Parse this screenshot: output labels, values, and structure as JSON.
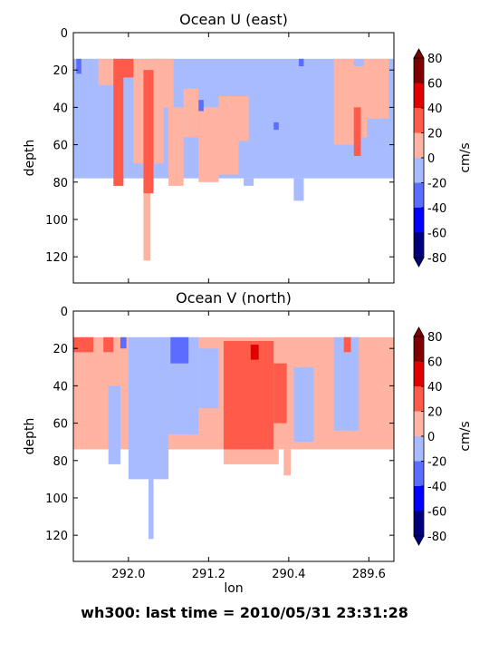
{
  "colors": {
    "levels": [
      -80,
      -60,
      -40,
      -20,
      0,
      20,
      40,
      60,
      80
    ],
    "bins": [
      "#00007f",
      "#0000ff",
      "#5a6dff",
      "#a9bbff",
      "#ffb3a0",
      "#ff5a4a",
      "#e00000",
      "#800000"
    ]
  },
  "suptitle": "wh300: last time = 2010/05/31 23:31:28",
  "chart_data": [
    {
      "type": "heatmap",
      "title": "Ocean U (east)",
      "xlabel": "",
      "ylabel": "depth",
      "x_axis_reversed": true,
      "y_axis_reversed": true,
      "xlim": [
        292.55,
        289.35
      ],
      "ylim": [
        134,
        0
      ],
      "xticks": [
        292.0,
        291.2,
        290.4,
        289.6
      ],
      "xtick_labels_visible": false,
      "yticks": [
        0,
        20,
        40,
        60,
        80,
        100,
        120
      ],
      "colorbar": {
        "label": "cm/s",
        "ticks": [
          80,
          60,
          40,
          20,
          0,
          -20,
          -40,
          -60,
          -80
        ]
      },
      "regions": [
        {
          "value": -10,
          "lon_start": 292.55,
          "lon_end": 289.35,
          "depth_top": 14,
          "depth_bottom": 78
        },
        {
          "value": -10,
          "lon_start": 290.85,
          "lon_end": 290.75,
          "depth_top": 78,
          "depth_bottom": 82
        },
        {
          "value": -10,
          "lon_start": 290.35,
          "lon_end": 290.25,
          "depth_top": 78,
          "depth_bottom": 90
        },
        {
          "value": 10,
          "lon_start": 292.3,
          "lon_end": 292.1,
          "depth_top": 14,
          "depth_bottom": 28
        },
        {
          "value": 10,
          "lon_start": 291.95,
          "lon_end": 291.65,
          "depth_top": 14,
          "depth_bottom": 70
        },
        {
          "value": 10,
          "lon_start": 291.85,
          "lon_end": 291.78,
          "depth_top": 70,
          "depth_bottom": 122
        },
        {
          "value": 10,
          "lon_start": 291.75,
          "lon_end": 291.55,
          "depth_top": 14,
          "depth_bottom": 40
        },
        {
          "value": 10,
          "lon_start": 291.6,
          "lon_end": 291.45,
          "depth_top": 40,
          "depth_bottom": 82
        },
        {
          "value": 10,
          "lon_start": 291.45,
          "lon_end": 291.3,
          "depth_top": 30,
          "depth_bottom": 56
        },
        {
          "value": 10,
          "lon_start": 291.3,
          "lon_end": 291.1,
          "depth_top": 40,
          "depth_bottom": 80
        },
        {
          "value": 10,
          "lon_start": 291.1,
          "lon_end": 290.9,
          "depth_top": 34,
          "depth_bottom": 76
        },
        {
          "value": 10,
          "lon_start": 290.95,
          "lon_end": 290.8,
          "depth_top": 34,
          "depth_bottom": 58
        },
        {
          "value": 10,
          "lon_start": 289.95,
          "lon_end": 289.75,
          "depth_top": 14,
          "depth_bottom": 60
        },
        {
          "value": 10,
          "lon_start": 289.8,
          "lon_end": 289.62,
          "depth_top": 18,
          "depth_bottom": 56
        },
        {
          "value": 10,
          "lon_start": 289.65,
          "lon_end": 289.4,
          "depth_top": 14,
          "depth_bottom": 46
        },
        {
          "value": 30,
          "lon_start": 292.15,
          "lon_end": 292.05,
          "depth_top": 14,
          "depth_bottom": 82
        },
        {
          "value": 30,
          "lon_start": 292.08,
          "lon_end": 291.95,
          "depth_top": 14,
          "depth_bottom": 24
        },
        {
          "value": 30,
          "lon_start": 291.85,
          "lon_end": 291.75,
          "depth_top": 20,
          "depth_bottom": 86
        },
        {
          "value": 30,
          "lon_start": 289.75,
          "lon_end": 289.68,
          "depth_top": 40,
          "depth_bottom": 66
        },
        {
          "value": -30,
          "lon_start": 292.52,
          "lon_end": 292.47,
          "depth_top": 14,
          "depth_bottom": 22
        },
        {
          "value": -30,
          "lon_start": 291.3,
          "lon_end": 291.25,
          "depth_top": 36,
          "depth_bottom": 42
        },
        {
          "value": -30,
          "lon_start": 290.3,
          "lon_end": 290.25,
          "depth_top": 14,
          "depth_bottom": 18
        },
        {
          "value": -30,
          "lon_start": 290.55,
          "lon_end": 290.5,
          "depth_top": 48,
          "depth_bottom": 52
        }
      ]
    },
    {
      "type": "heatmap",
      "title": "Ocean V (north)",
      "xlabel": "lon",
      "ylabel": "depth",
      "x_axis_reversed": true,
      "y_axis_reversed": true,
      "xlim": [
        292.55,
        289.35
      ],
      "ylim": [
        134,
        0
      ],
      "xticks": [
        292.0,
        291.2,
        290.4,
        289.6
      ],
      "xtick_labels": [
        "292.0",
        "291.2",
        "290.4",
        "289.6"
      ],
      "yticks": [
        0,
        20,
        40,
        60,
        80,
        100,
        120
      ],
      "colorbar": {
        "label": "cm/s",
        "ticks": [
          80,
          60,
          40,
          20,
          0,
          -20,
          -40,
          -60,
          -80
        ]
      },
      "regions": [
        {
          "value": 10,
          "lon_start": 292.55,
          "lon_end": 289.35,
          "depth_top": 14,
          "depth_bottom": 74
        },
        {
          "value": -10,
          "lon_start": 292.0,
          "lon_end": 291.6,
          "depth_top": 14,
          "depth_bottom": 90
        },
        {
          "value": -10,
          "lon_start": 291.8,
          "lon_end": 291.75,
          "depth_top": 90,
          "depth_bottom": 122
        },
        {
          "value": -10,
          "lon_start": 291.6,
          "lon_end": 291.3,
          "depth_top": 14,
          "depth_bottom": 66
        },
        {
          "value": -10,
          "lon_start": 291.3,
          "lon_end": 291.1,
          "depth_top": 20,
          "depth_bottom": 52
        },
        {
          "value": -10,
          "lon_start": 290.35,
          "lon_end": 290.15,
          "depth_top": 30,
          "depth_bottom": 70
        },
        {
          "value": -10,
          "lon_start": 289.95,
          "lon_end": 289.7,
          "depth_top": 14,
          "depth_bottom": 64
        },
        {
          "value": -10,
          "lon_start": 292.2,
          "lon_end": 292.08,
          "depth_top": 40,
          "depth_bottom": 82
        },
        {
          "value": 10,
          "lon_start": 291.05,
          "lon_end": 290.5,
          "depth_top": 74,
          "depth_bottom": 82
        },
        {
          "value": 10,
          "lon_start": 290.45,
          "lon_end": 290.38,
          "depth_top": 74,
          "depth_bottom": 88
        },
        {
          "value": 30,
          "lon_start": 292.55,
          "lon_end": 292.35,
          "depth_top": 14,
          "depth_bottom": 22
        },
        {
          "value": 30,
          "lon_start": 292.25,
          "lon_end": 292.15,
          "depth_top": 14,
          "depth_bottom": 22
        },
        {
          "value": 30,
          "lon_start": 291.05,
          "lon_end": 290.55,
          "depth_top": 16,
          "depth_bottom": 74
        },
        {
          "value": 30,
          "lon_start": 290.55,
          "lon_end": 290.42,
          "depth_top": 28,
          "depth_bottom": 60
        },
        {
          "value": 30,
          "lon_start": 289.85,
          "lon_end": 289.78,
          "depth_top": 14,
          "depth_bottom": 22
        },
        {
          "value": 50,
          "lon_start": 290.78,
          "lon_end": 290.7,
          "depth_top": 18,
          "depth_bottom": 26
        },
        {
          "value": -30,
          "lon_start": 291.58,
          "lon_end": 291.4,
          "depth_top": 14,
          "depth_bottom": 28
        },
        {
          "value": -30,
          "lon_start": 292.08,
          "lon_end": 292.02,
          "depth_top": 14,
          "depth_bottom": 20
        }
      ]
    }
  ]
}
